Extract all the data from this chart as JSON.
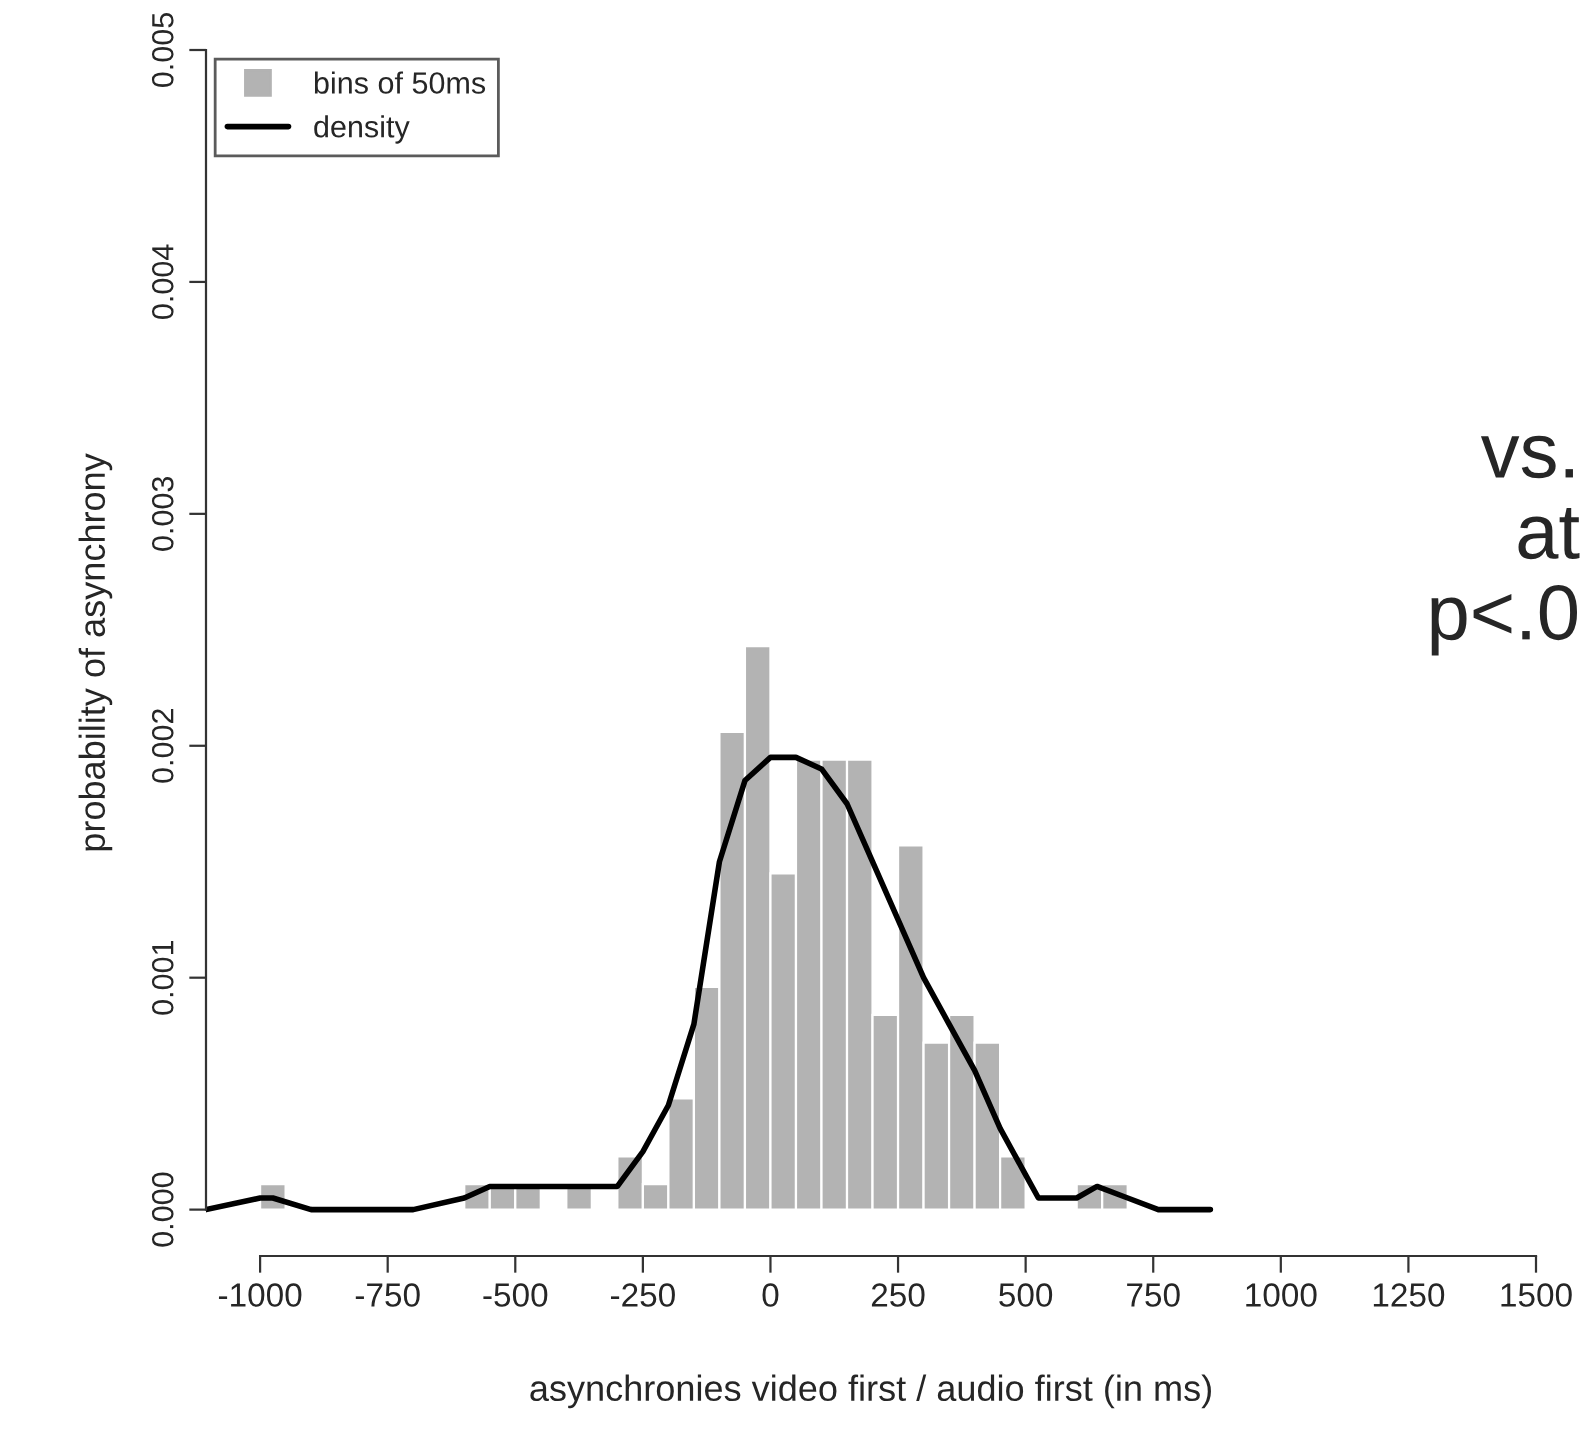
{
  "chart_data": {
    "type": "histogram",
    "xlabel": "asynchronies video first / audio first (in ms)",
    "ylabel": "probability of asynchrony",
    "annotations": [
      "vs.\nat\np<.0"
    ],
    "series": [
      {
        "name": "bins of 50ms",
        "color": "#b3b3b3",
        "bins": [
          -1000,
          -950,
          -900,
          -850,
          -800,
          -750,
          -700,
          -650,
          -600,
          -550,
          -500,
          -450,
          -400,
          -350,
          -300,
          -250,
          -200,
          -150,
          -100,
          -50,
          0,
          50,
          100,
          150,
          200,
          250,
          300,
          350,
          400,
          450,
          500,
          550,
          600,
          650,
          700
        ],
        "values": [
          0.00011,
          0,
          0,
          0,
          0,
          0,
          0,
          0,
          0.00011,
          0.00011,
          0.00011,
          0,
          0.00011,
          0,
          0.00023,
          0.00011,
          0.00048,
          0.00096,
          0.00206,
          0.00243,
          0.00145,
          0.00194,
          0.00194,
          0.00194,
          0.00084,
          0.00157,
          0.00072,
          0.00084,
          0.00072,
          0.00023,
          0,
          0,
          0.00011,
          0.00011
        ]
      },
      {
        "name": "density",
        "type": "line",
        "color": "#000000",
        "x": [
          -1106,
          -1000,
          -975,
          -900,
          -800,
          -700,
          -600,
          -550,
          -500,
          -450,
          -400,
          -350,
          -300,
          -250,
          -200,
          -150,
          -100,
          -50,
          0,
          15,
          50,
          100,
          150,
          200,
          250,
          300,
          350,
          400,
          450,
          500,
          525,
          550,
          600,
          640,
          700,
          760,
          862
        ],
        "values": [
          0,
          5e-05,
          5e-05,
          0,
          0,
          0,
          5e-05,
          0.0001,
          0.0001,
          0.0001,
          0.0001,
          0.0001,
          0.0001,
          0.00025,
          0.00045,
          0.0008,
          0.0015,
          0.00185,
          0.00195,
          0.00195,
          0.00195,
          0.0019,
          0.00175,
          0.0015,
          0.00125,
          0.001,
          0.0008,
          0.0006,
          0.00035,
          0.00015,
          5e-05,
          5e-05,
          5e-05,
          0.0001,
          5e-05,
          0,
          0
        ]
      }
    ],
    "xlim": [
      -1106,
      1500
    ],
    "ylim": [
      -0.0002,
      0.005
    ],
    "xticks": [
      -1000,
      -750,
      -500,
      -250,
      0,
      250,
      500,
      750,
      1000,
      1250,
      1500
    ],
    "yticks": [
      {
        "value": 0,
        "label": "0.000"
      },
      {
        "value": 0.001,
        "label": "0.001"
      },
      {
        "value": 0.002,
        "label": "0.002"
      },
      {
        "value": 0.003,
        "label": "0.003"
      },
      {
        "value": 0.004,
        "label": "0.004"
      },
      {
        "value": 0.005,
        "label": "0.005"
      }
    ],
    "legend": "top left",
    "grid": false
  }
}
